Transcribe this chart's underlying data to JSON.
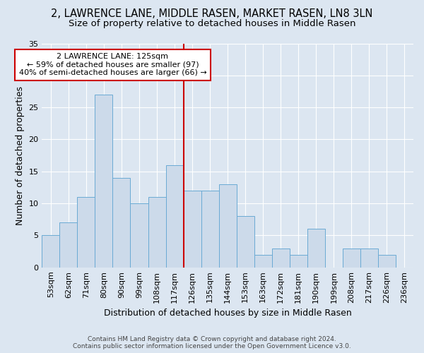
{
  "title_line1": "2, LAWRENCE LANE, MIDDLE RASEN, MARKET RASEN, LN8 3LN",
  "title_line2": "Size of property relative to detached houses in Middle Rasen",
  "xlabel": "Distribution of detached houses by size in Middle Rasen",
  "ylabel": "Number of detached properties",
  "footnote": "Contains HM Land Registry data © Crown copyright and database right 2024.\nContains public sector information licensed under the Open Government Licence v3.0.",
  "bar_labels": [
    "53sqm",
    "62sqm",
    "71sqm",
    "80sqm",
    "90sqm",
    "99sqm",
    "108sqm",
    "117sqm",
    "126sqm",
    "135sqm",
    "144sqm",
    "153sqm",
    "163sqm",
    "172sqm",
    "181sqm",
    "190sqm",
    "199sqm",
    "208sqm",
    "217sqm",
    "226sqm",
    "236sqm"
  ],
  "bar_values": [
    5,
    7,
    11,
    27,
    14,
    10,
    11,
    16,
    12,
    12,
    13,
    8,
    2,
    3,
    2,
    6,
    0,
    3,
    3,
    2,
    0
  ],
  "bar_color": "#ccdaea",
  "bar_edge_color": "#6aaad4",
  "vline_color": "#cc0000",
  "annotation_text": "2 LAWRENCE LANE: 125sqm\n← 59% of detached houses are smaller (97)\n40% of semi-detached houses are larger (66) →",
  "annotation_box_facecolor": "#ffffff",
  "annotation_box_edgecolor": "#cc0000",
  "bg_color": "#dce6f1",
  "ylim": [
    0,
    35
  ],
  "yticks": [
    0,
    5,
    10,
    15,
    20,
    25,
    30,
    35
  ],
  "title_fontsize": 10.5,
  "subtitle_fontsize": 9.5,
  "ylabel_fontsize": 9,
  "xlabel_fontsize": 9,
  "tick_fontsize": 8,
  "annot_fontsize": 8,
  "footnote_fontsize": 6.5,
  "vline_x_index": 7.5
}
